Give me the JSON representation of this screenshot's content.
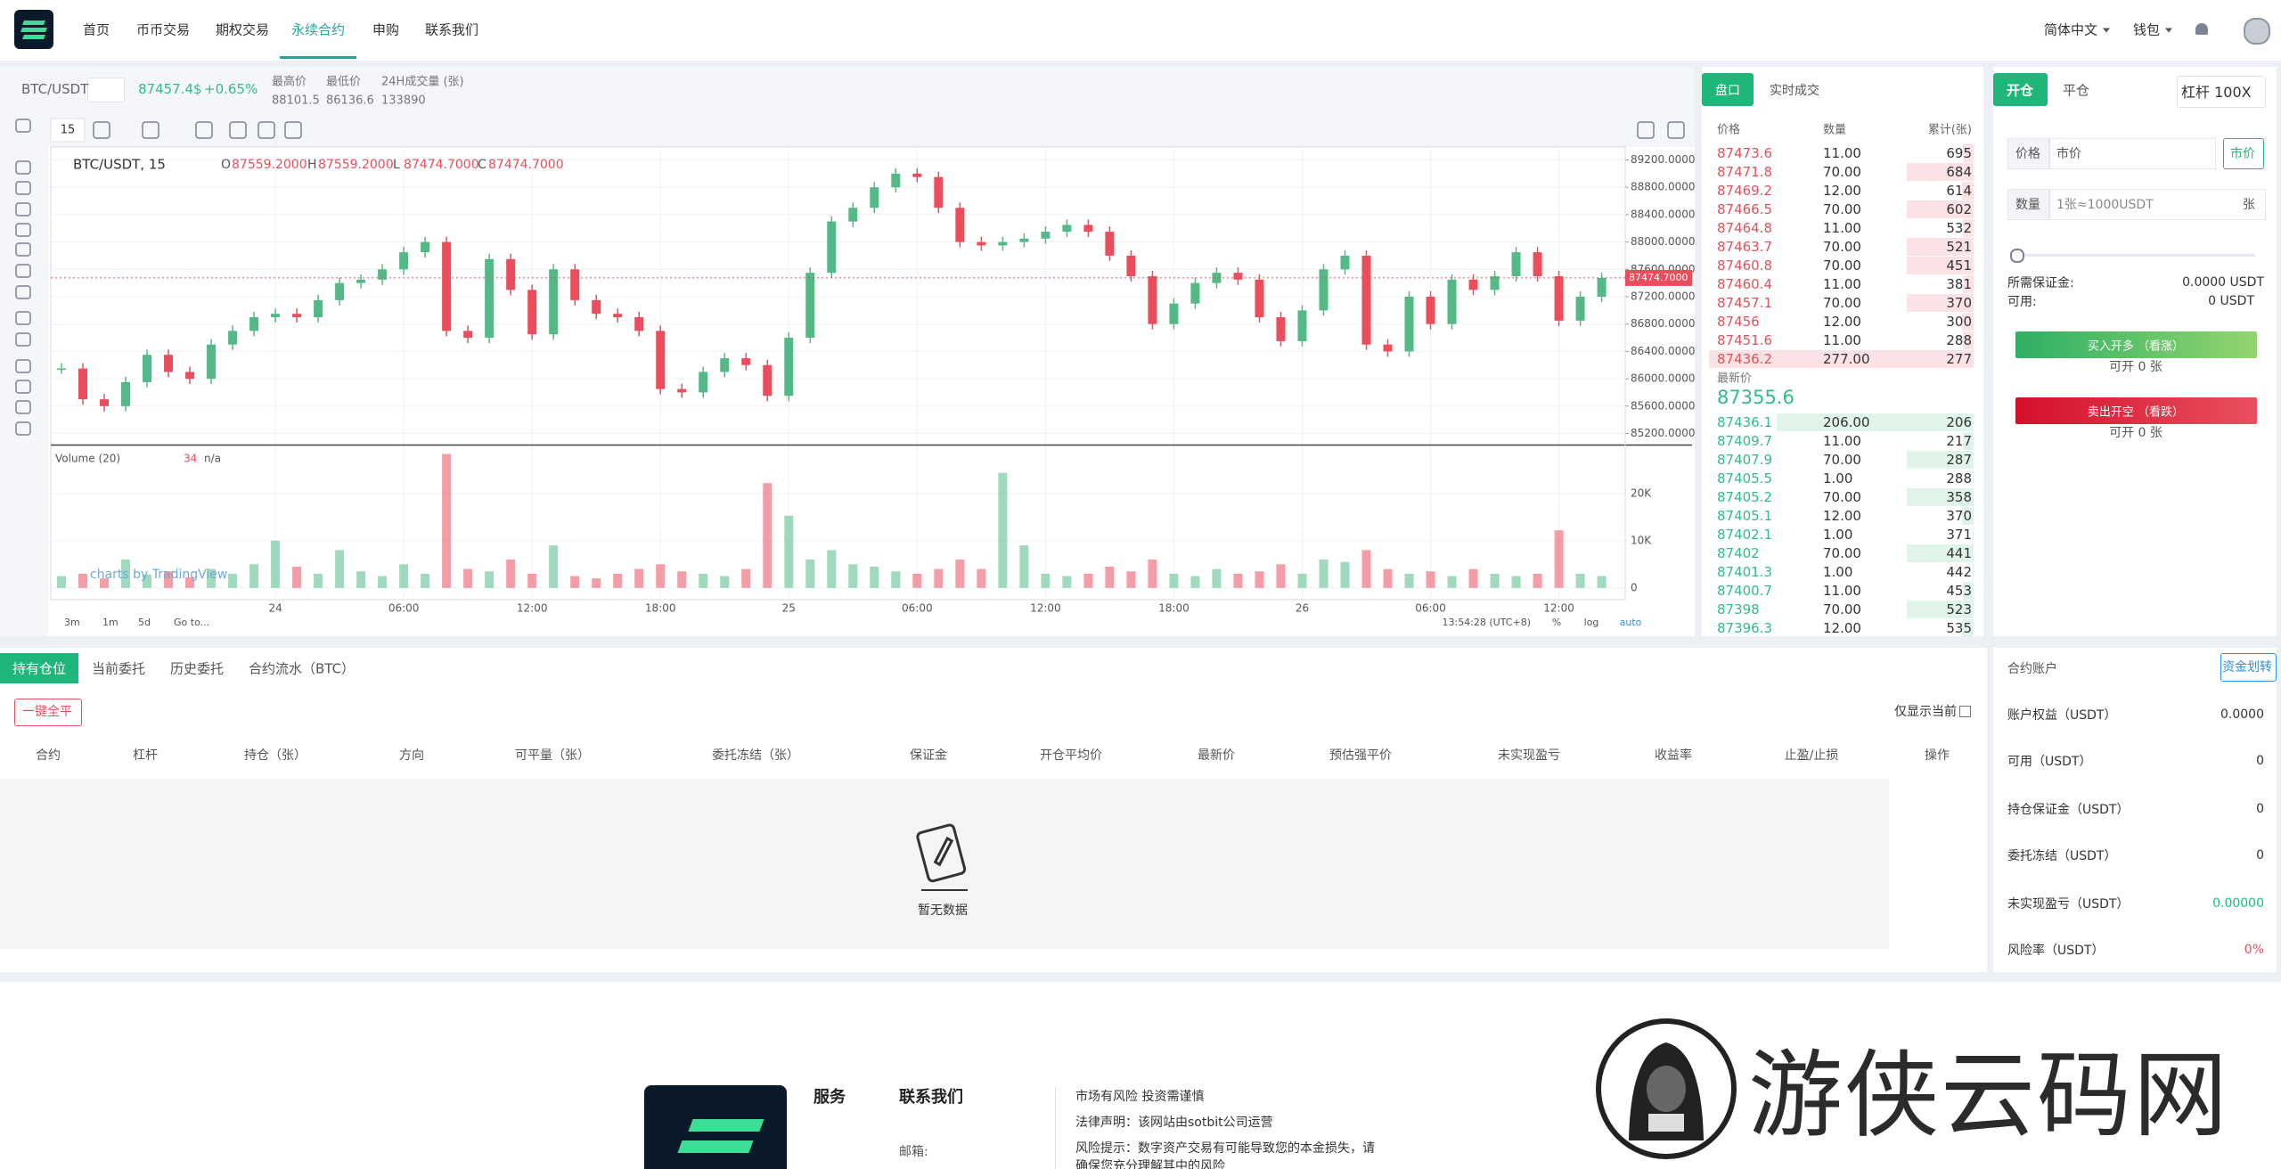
{
  "nav": {
    "items": [
      "首页",
      "币币交易",
      "期权交易",
      "永续合约",
      "申购",
      "联系我们"
    ],
    "language": "简体中文",
    "wallet": "钱包"
  },
  "ticker": {
    "symbol": "BTC/USDT",
    "price": "87457.4$",
    "change": "+0.65%",
    "stats": [
      {
        "label": "最高价",
        "value": "88101.5"
      },
      {
        "label": "最低价",
        "value": "86136.6"
      },
      {
        "label": "24H成交量 (张)",
        "value": "133890"
      }
    ]
  },
  "chart_data": {
    "type": "candlestick",
    "interval": "15",
    "title": "BTC/USDT, 15",
    "ohlc": [
      {
        "label": "O",
        "value": "87559.2000"
      },
      {
        "label": "H",
        "value": "87559.2000"
      },
      {
        "label": "L",
        "value": "87474.7000"
      },
      {
        "label": "C",
        "value": "87474.7000"
      }
    ],
    "closes": [
      86150,
      85700,
      85600,
      85950,
      86350,
      86100,
      86000,
      86500,
      86700,
      86900,
      86950,
      86900,
      87150,
      87400,
      87450,
      87600,
      87850,
      88000,
      86700,
      86600,
      87750,
      87300,
      86650,
      87600,
      87150,
      86950,
      86900,
      86700,
      85850,
      85800,
      86100,
      86300,
      86200,
      85750,
      86600,
      87550,
      88300,
      88500,
      88800,
      89000,
      88950,
      88500,
      88000,
      87950,
      88000,
      88050,
      88150,
      88250,
      88150,
      87800,
      87500,
      86800,
      87100,
      87400,
      87550,
      87450,
      86900,
      86550,
      87000,
      87600,
      87800,
      86500,
      86400,
      87200,
      86800,
      87450,
      87300,
      87500,
      87850,
      87500,
      86850,
      87200,
      87474.7
    ],
    "ylim": [
      85050,
      89350
    ],
    "yticks": [
      {
        "value": 85200,
        "label": "85200.0000"
      },
      {
        "value": 85600,
        "label": "85600.0000"
      },
      {
        "value": 86000,
        "label": "86000.0000"
      },
      {
        "value": 86400,
        "label": "86400.0000"
      },
      {
        "value": 86800,
        "label": "86800.0000"
      },
      {
        "value": 87200,
        "label": "87200.0000"
      },
      {
        "value": 87600,
        "label": "87600.0000"
      },
      {
        "value": 88000,
        "label": "88000.0000"
      },
      {
        "value": 88400,
        "label": "88400.0000"
      },
      {
        "value": 88800,
        "label": "88800.0000"
      },
      {
        "value": 89200,
        "label": "89200.0000"
      }
    ],
    "price_tag": {
      "value": 87474.7,
      "label": "87474.7000"
    },
    "xlim": [
      -10.5,
      63.1
    ],
    "xticks": [
      {
        "value": 0,
        "label": "24"
      },
      {
        "value": 6,
        "label": "06:00"
      },
      {
        "value": 12,
        "label": "12:00"
      },
      {
        "value": 18,
        "label": "18:00"
      },
      {
        "value": 24,
        "label": "25"
      },
      {
        "value": 30,
        "label": "06:00"
      },
      {
        "value": 36,
        "label": "12:00"
      },
      {
        "value": 42,
        "label": "18:00"
      },
      {
        "value": 48,
        "label": "26"
      },
      {
        "value": 54,
        "label": "06:00"
      },
      {
        "value": 60,
        "label": "12:00"
      }
    ],
    "grid": true,
    "up_color": "#53b987",
    "down_color": "#eb4d5c",
    "volume": {
      "title": "Volume (20)",
      "value": "34",
      "extra": "n/a",
      "values": [
        2500,
        3000,
        2000,
        6000,
        2800,
        3500,
        2200,
        4000,
        3000,
        5000,
        10000,
        4500,
        3000,
        8000,
        3500,
        2500,
        5000,
        3000,
        28400,
        4000,
        3500,
        6000,
        3000,
        9000,
        2500,
        2000,
        3000,
        4000,
        5000,
        3500,
        3000,
        2500,
        4000,
        22200,
        15300,
        6000,
        8000,
        5000,
        4500,
        3500,
        3000,
        4000,
        6000,
        4000,
        24400,
        9000,
        3000,
        2500,
        3000,
        4500,
        3500,
        6000,
        3000,
        2500,
        4000,
        3000,
        3500,
        5000,
        3000,
        6000,
        5500,
        8000,
        4000,
        3000,
        3500,
        2500,
        4000,
        3000,
        2500,
        3000,
        12200,
        3000,
        2500
      ],
      "ylim": [
        -2500,
        30000
      ],
      "yticks": [
        0,
        {
          "value": 10000,
          "label": "10K"
        },
        {
          "value": 20000,
          "label": "20K"
        }
      ]
    },
    "watermark": "charts by TradingView",
    "ranges": [
      "3m",
      "1m",
      "5d",
      "Go to..."
    ],
    "clock": "13:54:28 (UTC+8)",
    "scale_options": [
      "%",
      "log",
      "auto"
    ]
  },
  "orderbook": {
    "tabs": [
      "盘口",
      "实时成交"
    ],
    "headers": [
      "价格",
      "数量",
      "累计(张)"
    ],
    "asks": [
      {
        "price": 87473.6,
        "amount": {
          "value": 11,
          "label": "11.00"
        },
        "total": 695
      },
      {
        "price": 87471.8,
        "amount": {
          "value": 70,
          "label": "70.00"
        },
        "total": 684
      },
      {
        "price": 87469.2,
        "amount": {
          "value": 12,
          "label": "12.00"
        },
        "total": 614
      },
      {
        "price": 87466.5,
        "amount": {
          "value": 70,
          "label": "70.00"
        },
        "total": 602
      },
      {
        "price": 87464.8,
        "amount": {
          "value": 11,
          "label": "11.00"
        },
        "total": 532
      },
      {
        "price": 87463.7,
        "amount": {
          "value": 70,
          "label": "70.00"
        },
        "total": 521
      },
      {
        "price": 87460.8,
        "amount": {
          "value": 70,
          "label": "70.00"
        },
        "total": 451
      },
      {
        "price": 87460.4,
        "amount": {
          "value": 11,
          "label": "11.00"
        },
        "total": 381
      },
      {
        "price": 87457.1,
        "amount": {
          "value": 70,
          "label": "70.00"
        },
        "total": 370
      },
      {
        "price": 87456,
        "amount": {
          "value": 12,
          "label": "12.00"
        },
        "total": 300
      },
      {
        "price": 87451.6,
        "amount": {
          "value": 11,
          "label": "11.00"
        },
        "total": 288
      },
      {
        "price": 87436.2,
        "amount": {
          "value": 277,
          "label": "277.00"
        },
        "total": 277
      }
    ],
    "last_label": "最新价",
    "last_price": 87355.6,
    "bids": [
      {
        "price": 87436.1,
        "amount": {
          "value": 206,
          "label": "206.00"
        },
        "total": 206
      },
      {
        "price": 87409.7,
        "amount": {
          "value": 11,
          "label": "11.00"
        },
        "total": 217
      },
      {
        "price": 87407.9,
        "amount": {
          "value": 70,
          "label": "70.00"
        },
        "total": 287
      },
      {
        "price": 87405.5,
        "amount": {
          "value": 1,
          "label": "1.00"
        },
        "total": 288
      },
      {
        "price": 87405.2,
        "amount": {
          "value": 70,
          "label": "70.00"
        },
        "total": 358
      },
      {
        "price": 87405.1,
        "amount": {
          "value": 12,
          "label": "12.00"
        },
        "total": 370
      },
      {
        "price": 87402.1,
        "amount": {
          "value": 1,
          "label": "1.00"
        },
        "total": 371
      },
      {
        "price": 87402,
        "amount": {
          "value": 70,
          "label": "70.00"
        },
        "total": 441
      },
      {
        "price": 87401.3,
        "amount": {
          "value": 1,
          "label": "1.00"
        },
        "total": 442
      },
      {
        "price": 87400.7,
        "amount": {
          "value": 11,
          "label": "11.00"
        },
        "total": 453
      },
      {
        "price": 87398,
        "amount": {
          "value": 70,
          "label": "70.00"
        },
        "total": 523
      },
      {
        "price": 87396.3,
        "amount": {
          "value": 12,
          "label": "12.00"
        },
        "total": 535
      }
    ]
  },
  "trade": {
    "tabs": [
      "开仓",
      "平仓"
    ],
    "leverage": "杠杆 100X",
    "price_label": "价格",
    "price_placeholder": "市价",
    "market_button": "市价",
    "amount_label": "数量",
    "amount_placeholder": "1张≈1000USDT",
    "amount_unit": "张",
    "margin_label": "所需保证金:",
    "margin_value": "0.0000 USDT",
    "available_label": "可用:",
    "available_value": "0 USDT",
    "buy": "买入开多 （看涨）",
    "buy_capacity": "可开 0 张",
    "sell": "卖出开空 （看跌）",
    "sell_capacity": "可开 0 张"
  },
  "positions": {
    "tabs": [
      "持有仓位",
      "当前委托",
      "历史委托",
      "合约流水（BTC）"
    ],
    "close_all": "一键全平",
    "filter": "仅显示当前",
    "columns": [
      "合约",
      "杠杆",
      "持仓（张）",
      "方向",
      "可平量（张）",
      "委托冻结（张）",
      "保证金",
      "开仓平均价",
      "最新价",
      "预估强平价",
      "未实现盈亏",
      "收益率",
      "止盈/止损",
      "操作"
    ],
    "empty": "暂无数据"
  },
  "account": {
    "title": "合约账户",
    "transfer": "资金划转",
    "rows": [
      {
        "label": "账户权益（USDT）",
        "value": "0.0000"
      },
      {
        "label": "可用（USDT）",
        "value": 0
      },
      {
        "label": "持仓保证金（USDT）",
        "value": 0
      },
      {
        "label": "委托冻结（USDT）",
        "value": 0
      },
      {
        "label": "未实现盈亏（USDT）",
        "value": "0.00000"
      },
      {
        "label": "风险率（USDT）",
        "value": "0%"
      }
    ]
  },
  "footer": {
    "service": "服务",
    "contact": "联系我们",
    "email_label": "邮箱:",
    "notices": [
      "市场有风险 投资需谨慎",
      "法律声明：该网站由sotbit公司运营",
      "风险提示：数字资产交易有可能导致您的本金损失，请",
      "确保您充分理解其中的风险"
    ],
    "watermark": "游侠云码网"
  }
}
